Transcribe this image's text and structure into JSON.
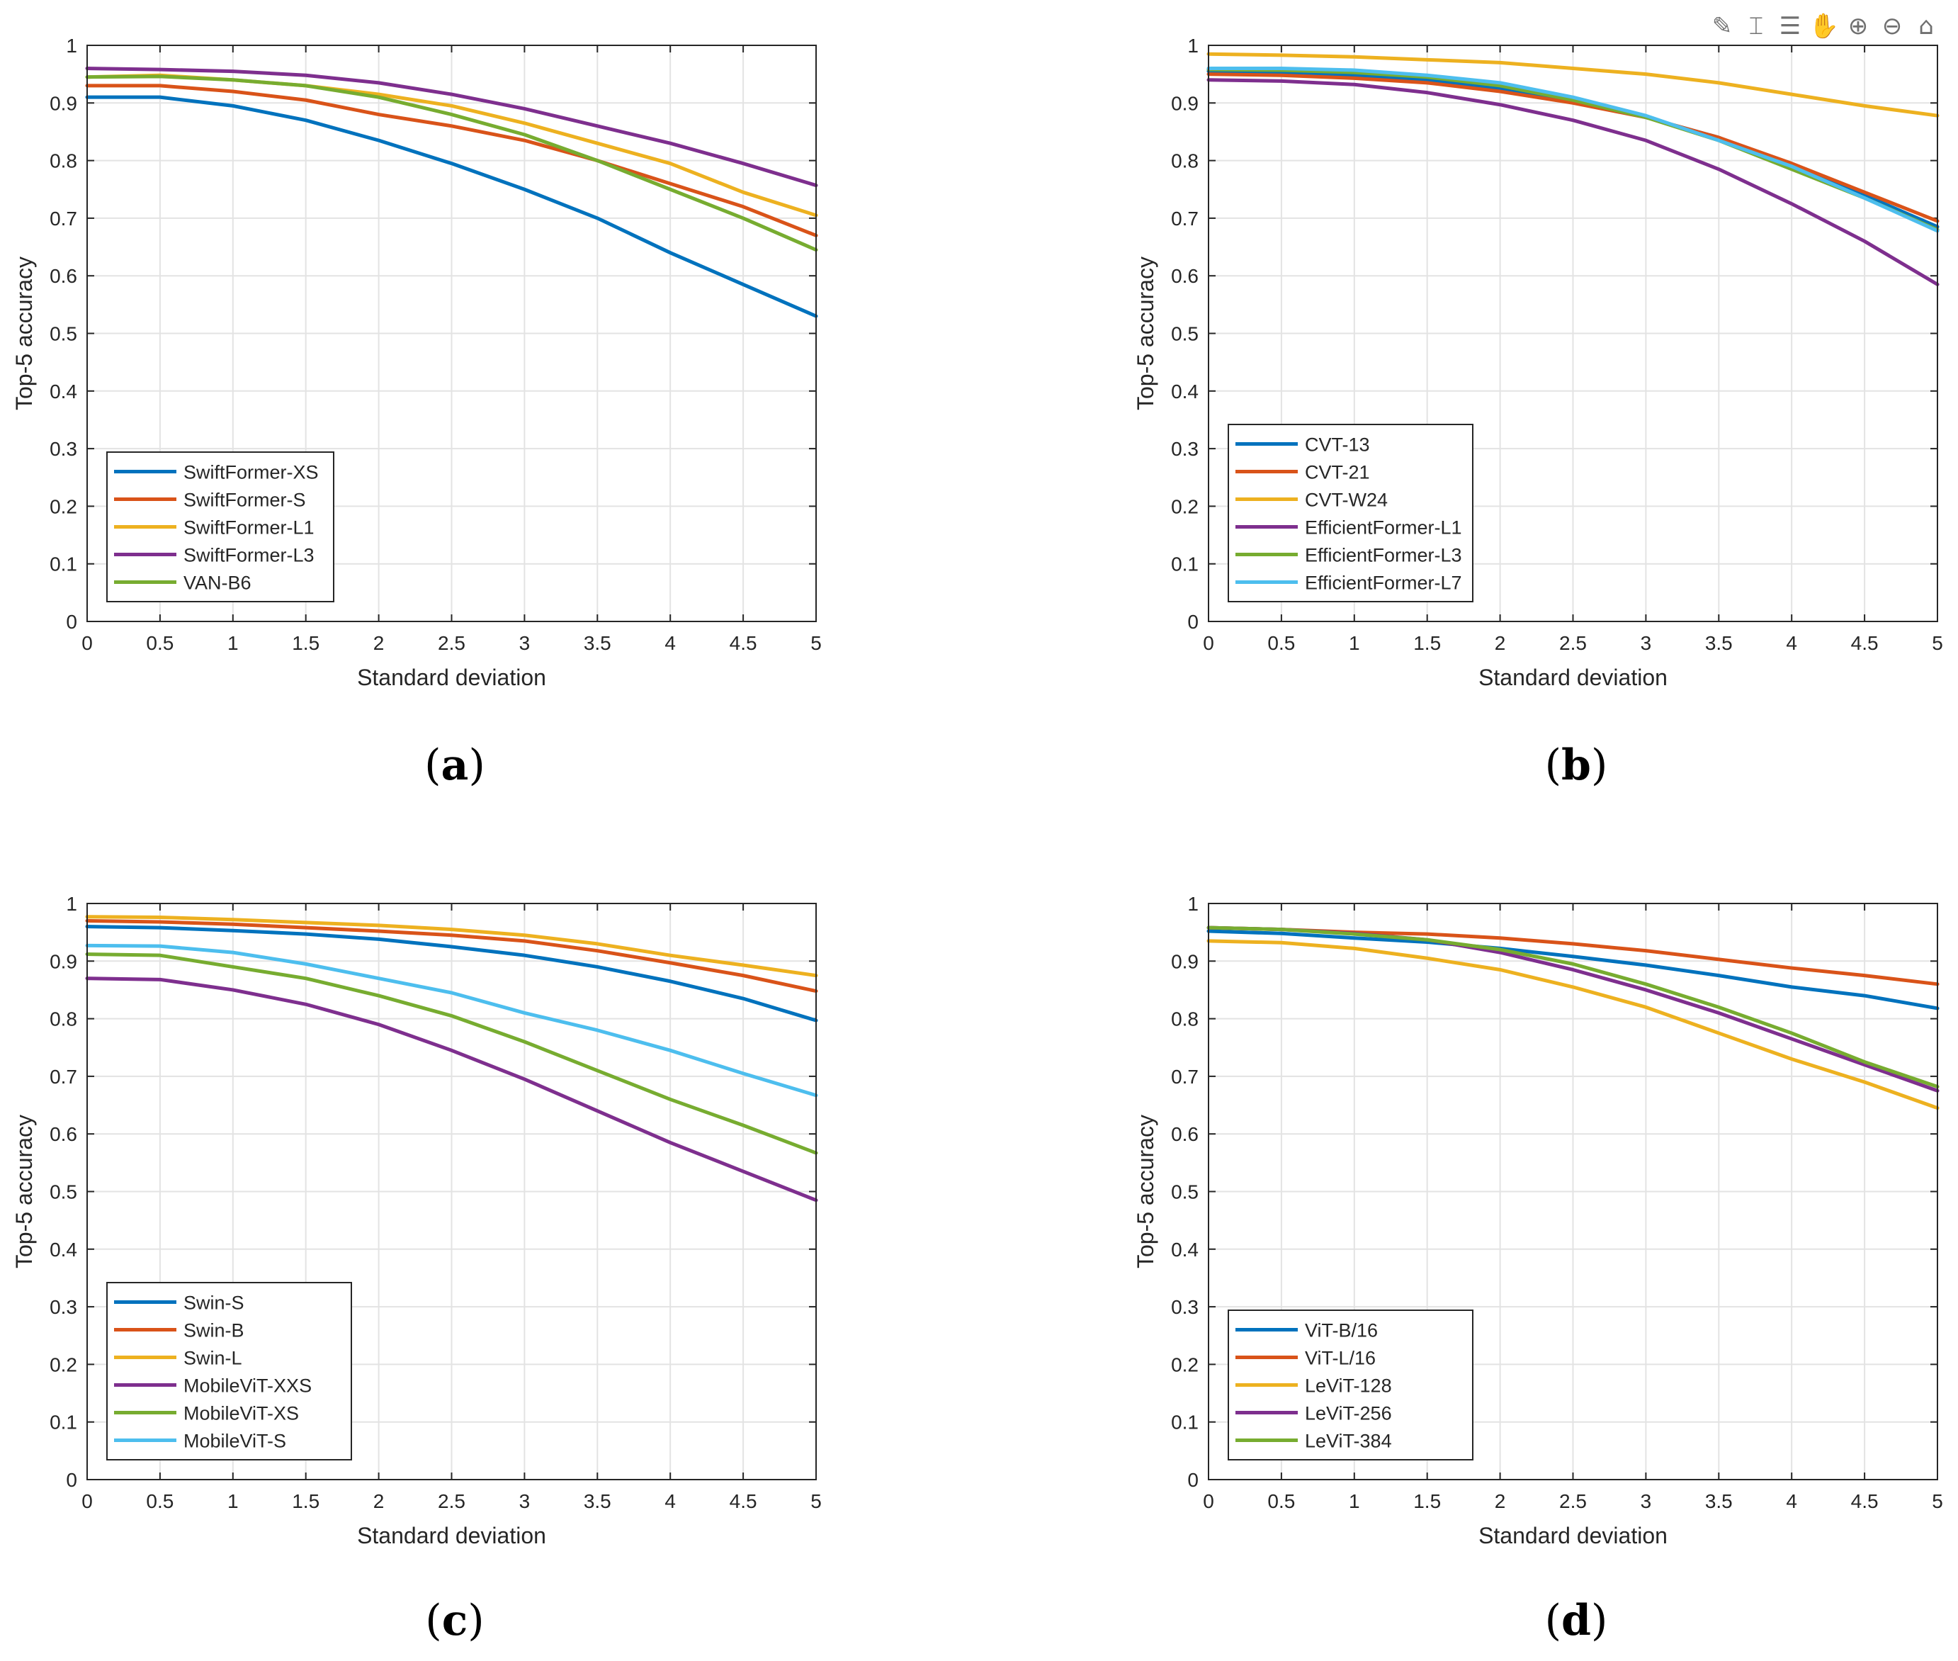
{
  "toolbar": {
    "icons": [
      {
        "name": "brush-icon",
        "glyph": "✎"
      },
      {
        "name": "data-cursor-icon",
        "glyph": "⌶"
      },
      {
        "name": "legend-icon",
        "glyph": "☰"
      },
      {
        "name": "pan-icon",
        "glyph": "✋"
      },
      {
        "name": "zoom-in-icon",
        "glyph": "⊕"
      },
      {
        "name": "zoom-out-icon",
        "glyph": "⊖"
      },
      {
        "name": "home-icon",
        "glyph": "⌂"
      }
    ]
  },
  "colors": {
    "axis": "#262626",
    "grid": "#e3e3e3",
    "series": [
      "#0072BD",
      "#D95319",
      "#EDB120",
      "#7E2F8E",
      "#77AC30",
      "#4DBEEE"
    ]
  },
  "labels": {
    "a": {
      "letter": "a"
    },
    "b": {
      "letter": "b"
    },
    "c": {
      "letter": "c"
    },
    "d": {
      "letter": "d"
    }
  },
  "chart_data": [
    {
      "id": "a",
      "type": "line",
      "xlabel": "Standard deviation",
      "ylabel": "Top-5 accuracy",
      "xlim": [
        0,
        5
      ],
      "ylim": [
        0,
        1
      ],
      "xticks": [
        "0",
        "0.5",
        "1",
        "1.5",
        "2",
        "2.5",
        "3",
        "3.5",
        "4",
        "4.5",
        "5"
      ],
      "yticks": [
        "0",
        "0.1",
        "0.2",
        "0.3",
        "0.4",
        "0.5",
        "0.6",
        "0.7",
        "0.8",
        "0.9",
        "1"
      ],
      "grid": true,
      "legend_position": "bottom-left",
      "x": [
        0,
        0.5,
        1,
        1.5,
        2,
        2.5,
        3,
        3.5,
        4,
        4.5,
        5
      ],
      "series": [
        {
          "name": "SwiftFormer-XS",
          "values": [
            0.91,
            0.91,
            0.895,
            0.87,
            0.835,
            0.795,
            0.75,
            0.7,
            0.64,
            0.585,
            0.53
          ]
        },
        {
          "name": "SwiftFormer-S",
          "values": [
            0.93,
            0.93,
            0.92,
            0.905,
            0.88,
            0.86,
            0.835,
            0.8,
            0.76,
            0.72,
            0.67
          ]
        },
        {
          "name": "SwiftFormer-L1",
          "values": [
            0.945,
            0.948,
            0.94,
            0.93,
            0.915,
            0.895,
            0.865,
            0.83,
            0.795,
            0.745,
            0.705
          ]
        },
        {
          "name": "SwiftFormer-L3",
          "values": [
            0.96,
            0.958,
            0.955,
            0.948,
            0.935,
            0.915,
            0.89,
            0.86,
            0.83,
            0.795,
            0.757
          ]
        },
        {
          "name": "VAN-B6",
          "values": [
            0.945,
            0.946,
            0.94,
            0.93,
            0.91,
            0.88,
            0.845,
            0.8,
            0.75,
            0.7,
            0.645
          ]
        }
      ]
    },
    {
      "id": "b",
      "type": "line",
      "xlabel": "Standard deviation",
      "ylabel": "Top-5 accuracy",
      "xlim": [
        0,
        5
      ],
      "ylim": [
        0,
        1
      ],
      "xticks": [
        "0",
        "0.5",
        "1",
        "1.5",
        "2",
        "2.5",
        "3",
        "3.5",
        "4",
        "4.5",
        "5"
      ],
      "yticks": [
        "0",
        "0.1",
        "0.2",
        "0.3",
        "0.4",
        "0.5",
        "0.6",
        "0.7",
        "0.8",
        "0.9",
        "1"
      ],
      "grid": true,
      "legend_position": "bottom-left",
      "x": [
        0,
        0.5,
        1,
        1.5,
        2,
        2.5,
        3,
        3.5,
        4,
        4.5,
        5
      ],
      "series": [
        {
          "name": "CVT-13",
          "values": [
            0.955,
            0.953,
            0.948,
            0.94,
            0.925,
            0.905,
            0.875,
            0.84,
            0.79,
            0.74,
            0.685
          ]
        },
        {
          "name": "CVT-21",
          "values": [
            0.95,
            0.948,
            0.943,
            0.935,
            0.92,
            0.9,
            0.875,
            0.84,
            0.795,
            0.745,
            0.695
          ]
        },
        {
          "name": "CVT-W24",
          "values": [
            0.985,
            0.983,
            0.98,
            0.975,
            0.97,
            0.96,
            0.95,
            0.935,
            0.915,
            0.895,
            0.878
          ]
        },
        {
          "name": "EfficientFormer-L1",
          "values": [
            0.94,
            0.938,
            0.932,
            0.918,
            0.897,
            0.87,
            0.835,
            0.785,
            0.725,
            0.66,
            0.585
          ]
        },
        {
          "name": "EfficientFormer-L3",
          "values": [
            0.958,
            0.957,
            0.953,
            0.945,
            0.93,
            0.905,
            0.875,
            0.835,
            0.785,
            0.735,
            0.68
          ]
        },
        {
          "name": "EfficientFormer-L7",
          "values": [
            0.96,
            0.96,
            0.957,
            0.948,
            0.935,
            0.91,
            0.878,
            0.835,
            0.79,
            0.735,
            0.678
          ]
        }
      ]
    },
    {
      "id": "c",
      "type": "line",
      "xlabel": "Standard deviation",
      "ylabel": "Top-5 accuracy",
      "xlim": [
        0,
        5
      ],
      "ylim": [
        0,
        1
      ],
      "xticks": [
        "0",
        "0.5",
        "1",
        "1.5",
        "2",
        "2.5",
        "3",
        "3.5",
        "4",
        "4.5",
        "5"
      ],
      "yticks": [
        "0",
        "0.1",
        "0.2",
        "0.3",
        "0.4",
        "0.5",
        "0.6",
        "0.7",
        "0.8",
        "0.9",
        "1"
      ],
      "grid": true,
      "legend_position": "bottom-left",
      "x": [
        0,
        0.5,
        1,
        1.5,
        2,
        2.5,
        3,
        3.5,
        4,
        4.5,
        5
      ],
      "series": [
        {
          "name": "Swin-S",
          "values": [
            0.96,
            0.958,
            0.953,
            0.947,
            0.938,
            0.925,
            0.91,
            0.89,
            0.865,
            0.835,
            0.797
          ]
        },
        {
          "name": "Swin-B",
          "values": [
            0.97,
            0.968,
            0.964,
            0.958,
            0.952,
            0.945,
            0.935,
            0.918,
            0.897,
            0.875,
            0.848
          ]
        },
        {
          "name": "Swin-L",
          "values": [
            0.977,
            0.976,
            0.972,
            0.967,
            0.962,
            0.955,
            0.945,
            0.93,
            0.91,
            0.893,
            0.875
          ]
        },
        {
          "name": "MobileViT-XXS",
          "values": [
            0.87,
            0.868,
            0.85,
            0.825,
            0.79,
            0.745,
            0.695,
            0.64,
            0.585,
            0.535,
            0.485
          ]
        },
        {
          "name": "MobileViT-XS",
          "values": [
            0.912,
            0.91,
            0.89,
            0.87,
            0.84,
            0.805,
            0.76,
            0.71,
            0.66,
            0.615,
            0.567
          ]
        },
        {
          "name": "MobileViT-S",
          "values": [
            0.927,
            0.926,
            0.915,
            0.895,
            0.87,
            0.845,
            0.81,
            0.78,
            0.745,
            0.705,
            0.667
          ]
        }
      ]
    },
    {
      "id": "d",
      "type": "line",
      "xlabel": "Standard deviation",
      "ylabel": "Top-5 accuracy",
      "xlim": [
        0,
        5
      ],
      "ylim": [
        0,
        1
      ],
      "xticks": [
        "0",
        "0.5",
        "1",
        "1.5",
        "2",
        "2.5",
        "3",
        "3.5",
        "4",
        "4.5",
        "5"
      ],
      "yticks": [
        "0",
        "0.1",
        "0.2",
        "0.3",
        "0.4",
        "0.5",
        "0.6",
        "0.7",
        "0.8",
        "0.9",
        "1"
      ],
      "grid": true,
      "legend_position": "bottom-left",
      "x": [
        0,
        0.5,
        1,
        1.5,
        2,
        2.5,
        3,
        3.5,
        4,
        4.5,
        5
      ],
      "series": [
        {
          "name": "ViT-B/16",
          "values": [
            0.952,
            0.948,
            0.94,
            0.933,
            0.922,
            0.908,
            0.893,
            0.875,
            0.855,
            0.84,
            0.818
          ]
        },
        {
          "name": "ViT-L/16",
          "values": [
            0.958,
            0.955,
            0.95,
            0.947,
            0.94,
            0.93,
            0.918,
            0.903,
            0.888,
            0.875,
            0.86
          ]
        },
        {
          "name": "LeViT-128",
          "values": [
            0.935,
            0.932,
            0.922,
            0.905,
            0.885,
            0.855,
            0.82,
            0.775,
            0.73,
            0.69,
            0.645
          ]
        },
        {
          "name": "LeViT-256",
          "values": [
            0.958,
            0.955,
            0.948,
            0.937,
            0.915,
            0.885,
            0.85,
            0.81,
            0.765,
            0.72,
            0.675
          ]
        },
        {
          "name": "LeViT-384",
          "values": [
            0.958,
            0.955,
            0.947,
            0.937,
            0.92,
            0.895,
            0.86,
            0.82,
            0.775,
            0.725,
            0.682
          ]
        }
      ]
    }
  ]
}
